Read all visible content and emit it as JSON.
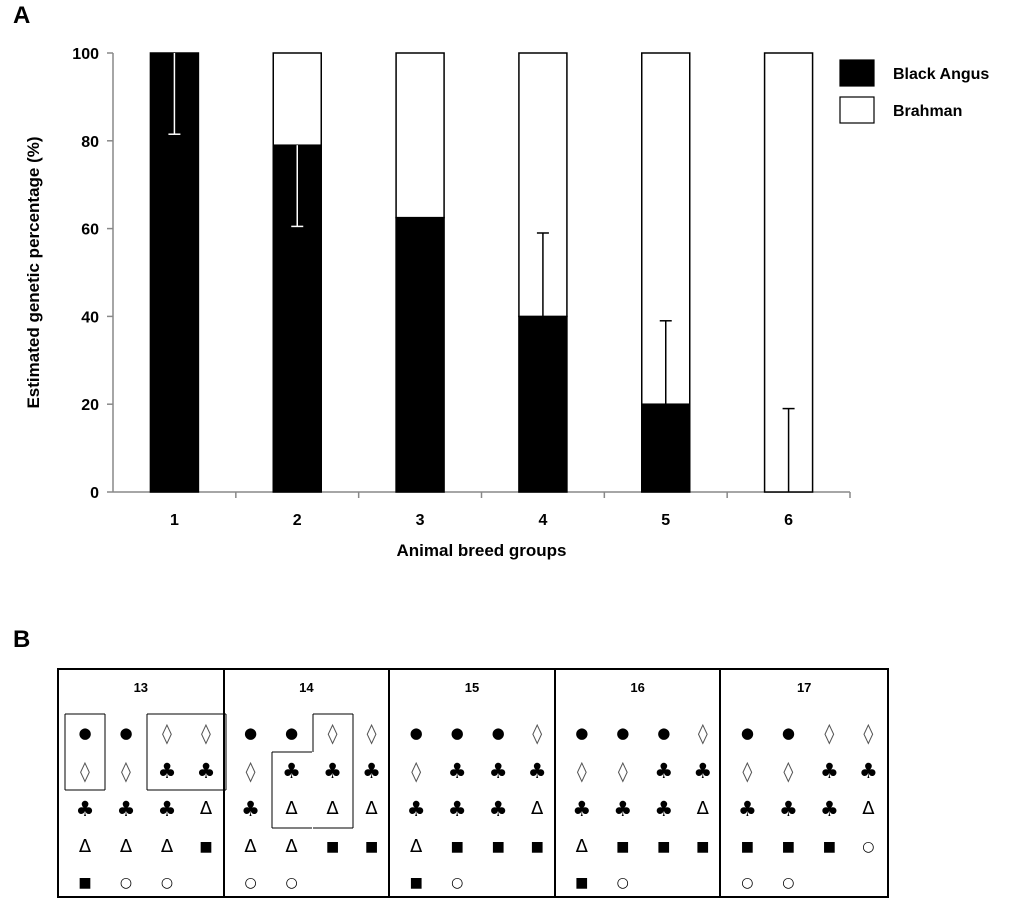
{
  "panels": {
    "a_label": "A",
    "b_label": "B"
  },
  "chart_data": {
    "type": "bar",
    "stacked": true,
    "categories": [
      "1",
      "2",
      "3",
      "4",
      "5",
      "6"
    ],
    "series": [
      {
        "name": "Black Angus",
        "color": "#000000",
        "values": [
          100,
          79,
          62.5,
          40,
          20,
          0
        ]
      },
      {
        "name": "Brahman",
        "color": "#ffffff",
        "values": [
          0,
          21,
          37.5,
          60,
          80,
          100
        ]
      }
    ],
    "error_bars": [
      {
        "category": "1",
        "low": 81.5,
        "high": 100,
        "color": "#ffffff"
      },
      {
        "category": "2",
        "low": 60.5,
        "high": 79,
        "color": "#ffffff"
      },
      {
        "category": "4",
        "low": 40,
        "high": 59,
        "color": "#000000"
      },
      {
        "category": "5",
        "low": 20,
        "high": 39,
        "color": "#000000"
      },
      {
        "category": "6",
        "low": 0,
        "high": 19,
        "color": "#000000"
      }
    ],
    "xlabel": "Animal breed groups",
    "ylabel": "Estimated genetic percentage (%)",
    "ylim": [
      0,
      100
    ],
    "yticks": [
      0,
      20,
      40,
      60,
      80,
      100
    ],
    "legend_position": "right",
    "grid": false
  },
  "pens": [
    {
      "number": "13",
      "rows": [
        [
          "dot",
          "dot",
          "diamond",
          "diamond"
        ],
        [
          "diamond",
          "diamond",
          "club",
          "club"
        ],
        [
          "club",
          "club",
          "club",
          "delta"
        ],
        [
          "delta",
          "delta",
          "delta",
          "square"
        ],
        [
          "square",
          "ring",
          "ring"
        ]
      ],
      "boxes": [
        [
          [
            0,
            0
          ],
          [
            1,
            0
          ]
        ],
        [
          [
            0,
            2
          ],
          [
            0,
            3
          ],
          [
            1,
            2
          ],
          [
            1,
            3
          ]
        ]
      ]
    },
    {
      "number": "14",
      "rows": [
        [
          "dot",
          "dot",
          "diamond",
          "diamond"
        ],
        [
          "diamond",
          "club",
          "club",
          "club"
        ],
        [
          "club",
          "delta",
          "delta",
          "delta"
        ],
        [
          "delta",
          "delta",
          "square",
          "square"
        ],
        [
          "ring",
          "ring"
        ]
      ],
      "boxes": [
        [
          [
            0,
            2
          ],
          [
            1,
            1
          ],
          [
            1,
            2
          ],
          [
            2,
            1
          ],
          [
            2,
            2
          ]
        ]
      ]
    },
    {
      "number": "15",
      "rows": [
        [
          "dot",
          "dot",
          "dot",
          "diamond"
        ],
        [
          "diamond",
          "club",
          "club",
          "club"
        ],
        [
          "club",
          "club",
          "club",
          "delta"
        ],
        [
          "delta",
          "square",
          "square",
          "square"
        ],
        [
          "square",
          "ring"
        ]
      ],
      "boxes": []
    },
    {
      "number": "16",
      "rows": [
        [
          "dot",
          "dot",
          "dot",
          "diamond"
        ],
        [
          "diamond",
          "diamond",
          "club",
          "club"
        ],
        [
          "club",
          "club",
          "club",
          "delta"
        ],
        [
          "delta",
          "square",
          "square",
          "square"
        ],
        [
          "square",
          "ring"
        ]
      ],
      "boxes": []
    },
    {
      "number": "17",
      "rows": [
        [
          "dot",
          "dot",
          "diamond",
          "diamond"
        ],
        [
          "diamond",
          "diamond",
          "club",
          "club"
        ],
        [
          "club",
          "club",
          "club",
          "delta"
        ],
        [
          "square",
          "square",
          "square",
          "ring"
        ],
        [
          "ring",
          "ring"
        ]
      ],
      "boxes": []
    }
  ]
}
